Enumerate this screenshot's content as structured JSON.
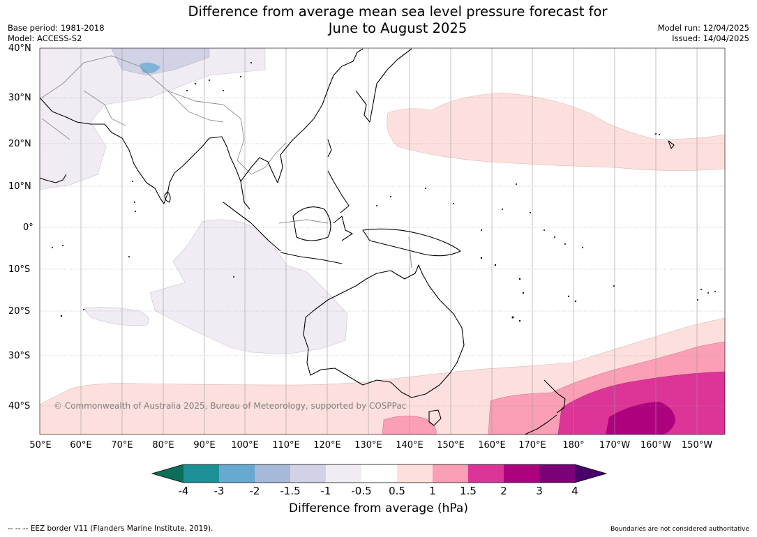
{
  "title_line1": "Difference from average mean sea level pressure forecast for",
  "title_line2": "June to August 2025",
  "base_period": "Base period: 1981-2018",
  "model": "Model: ACCESS-S2",
  "model_run": "Model run: 12/04/2025",
  "issued": "Issued: 14/04/2025",
  "lat_labels": [
    "40°N",
    "30°N",
    "20°N",
    "10°N",
    "0°",
    "10°S",
    "20°S",
    "30°S",
    "40°S"
  ],
  "lon_labels": [
    "50°E",
    "60°E",
    "70°E",
    "80°E",
    "90°E",
    "100°E",
    "110°E",
    "120°E",
    "130°E",
    "140°E",
    "150°E",
    "160°E",
    "170°E",
    "180°",
    "170°W",
    "160°W",
    "150°W"
  ],
  "copyright": "© Commonwealth of Australia 2025, Bureau of Meteorology, supported by COSPPac",
  "colorbar": {
    "title": "Difference from average (hPa)",
    "tick_labels": [
      "-4",
      "-3",
      "-2",
      "-1.5",
      "-1",
      "-0.5",
      "0.5",
      "1",
      "1.5",
      "2",
      "3",
      "4"
    ],
    "colors": [
      "#0d6e5a",
      "#1c9096",
      "#67a9cf",
      "#a6b9d8",
      "#d1d2e6",
      "#f1ecf4",
      "#ffffff",
      "#fde0dd",
      "#fa9fb5",
      "#dd3497",
      "#ae017e",
      "#7a0177",
      "#49006a"
    ]
  },
  "footer_left": "--  --  -- EEZ border V11 (Flanders Marine Institute, 2019).",
  "footer_right": "Boundaries are not considered authoritative"
}
